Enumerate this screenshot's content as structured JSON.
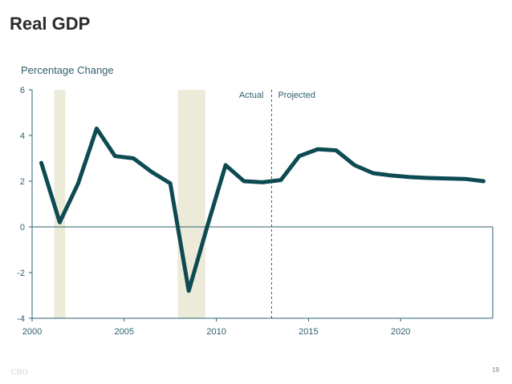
{
  "slide": {
    "title": "Real GDP",
    "footer_left": "CBO",
    "page_number": "19"
  },
  "chart_data": {
    "type": "line",
    "title": "",
    "ylabel": "Percentage Change",
    "xlabel": "",
    "xlim": [
      2000,
      2025
    ],
    "ylim": [
      -4,
      6
    ],
    "x_ticks": [
      2000,
      2005,
      2010,
      2015,
      2020
    ],
    "y_ticks": [
      6,
      4,
      2,
      0,
      -2,
      -4
    ],
    "grid": false,
    "zero_line": true,
    "recessions": [
      [
        2001.2,
        2001.8
      ],
      [
        2007.9,
        2009.4
      ]
    ],
    "annotations": {
      "actual": "Actual",
      "projected": "Projected",
      "divider_x": 2013
    },
    "line_color": "#0d4a52",
    "recession_color": "#ecebd9",
    "series": [
      {
        "x": [
          2000.5,
          2001.5,
          2002.5,
          2003.5,
          2004.5,
          2005.5,
          2006.5,
          2007.5,
          2008.5,
          2009.5,
          2010.5,
          2011.5,
          2012.5,
          2013.5,
          2014.5,
          2015.5,
          2016.5,
          2017.5,
          2018.5,
          2019.5,
          2020.5,
          2021.5,
          2022.5,
          2023.5,
          2024.5
        ],
        "y": [
          2.8,
          0.2,
          1.9,
          4.3,
          3.1,
          3.0,
          2.4,
          1.9,
          -2.8,
          0.0,
          2.7,
          2.0,
          1.95,
          2.05,
          3.1,
          3.4,
          3.35,
          2.7,
          2.35,
          2.25,
          2.18,
          2.14,
          2.12,
          2.1,
          2.0
        ]
      }
    ]
  }
}
